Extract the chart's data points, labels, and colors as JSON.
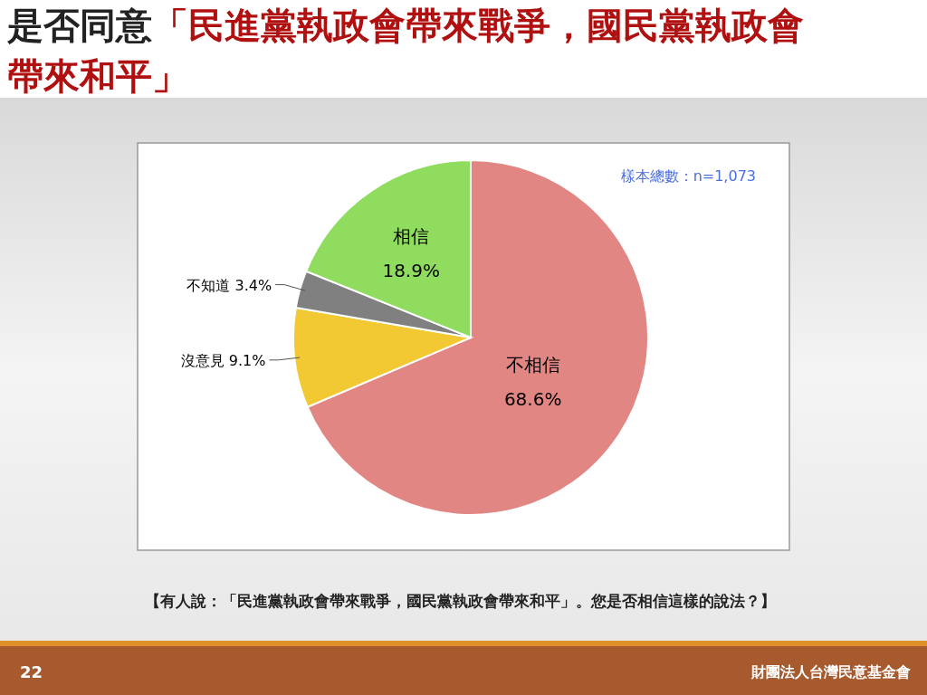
{
  "chart_data": {
    "type": "pie",
    "title": "是否同意「民進黨執政會帶來戰爭，國民黨執政會帶來和平」",
    "categories": [
      "不相信",
      "沒意見",
      "不知道",
      "相信"
    ],
    "values": [
      68.6,
      9.1,
      3.4,
      18.9
    ],
    "colors": [
      "#e28683",
      "#f2c833",
      "#808080",
      "#8fdc5f"
    ],
    "value_labels": [
      "68.6%",
      "9.1%",
      "3.4%",
      "18.9%"
    ],
    "annotations": [
      "樣本總數：n=1,073",
      "【有人說：「民進黨執政會帶來戰爭，國民黨執政會帶來和平」。您是否相信這樣的說法？】",
      "22",
      "財團法人台灣民意基金會"
    ]
  }
}
